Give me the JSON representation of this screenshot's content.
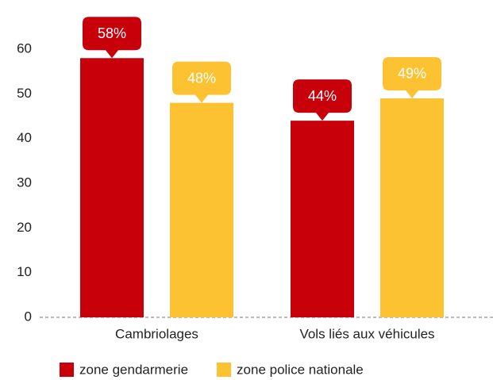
{
  "chart_data": {
    "type": "bar",
    "categories": [
      "Cambriolages",
      "Vols liés aux véhicules"
    ],
    "series": [
      {
        "name": "zone gendarmerie",
        "color": "#c8000a",
        "values": [
          58,
          44
        ],
        "value_labels": [
          "58%",
          "44%"
        ]
      },
      {
        "name": "zone police nationale",
        "color": "#fdc232",
        "values": [
          48,
          49
        ],
        "value_labels": [
          "48%",
          "49%"
        ]
      }
    ],
    "ylim": [
      0,
      60
    ],
    "yticks": [
      0,
      10,
      20,
      30,
      40,
      50,
      60
    ],
    "grid": false
  }
}
